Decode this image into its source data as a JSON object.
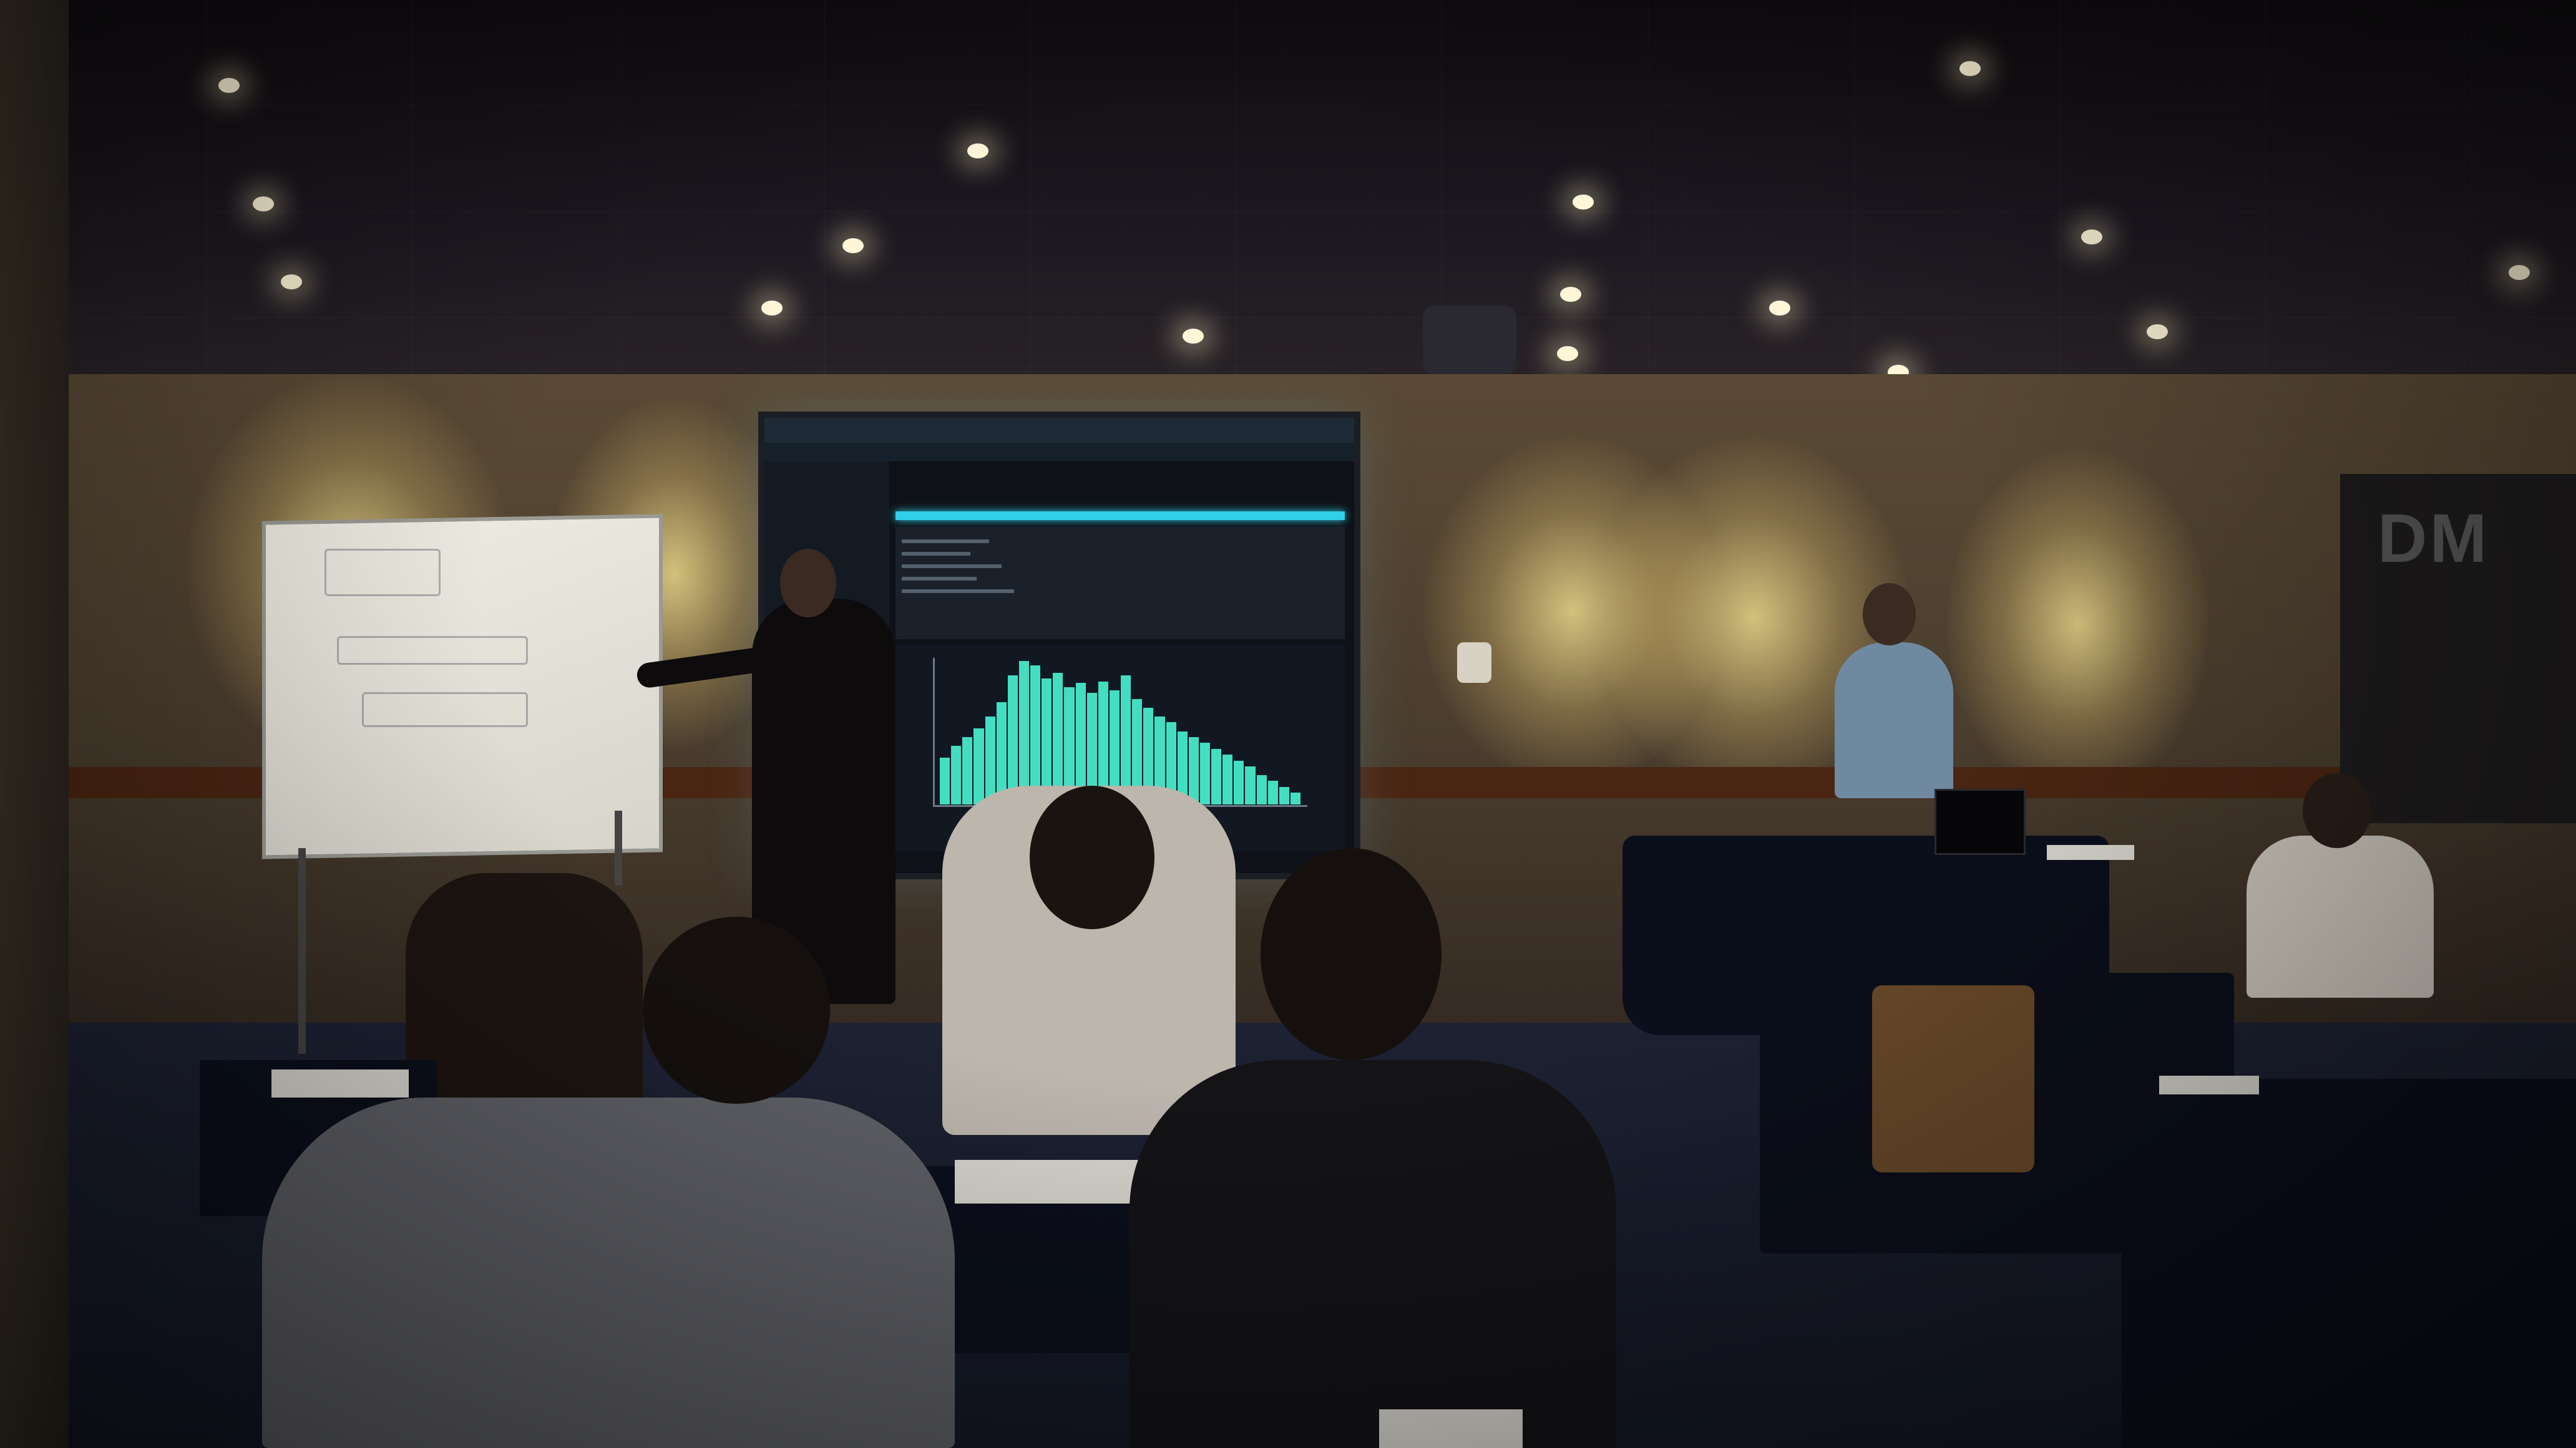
{
  "scene": {
    "subject": "",
    "banner_logo_text": "DM"
  },
  "screen_chart": {
    "type": "histogram",
    "bar_levels": [
      0.32,
      0.4,
      0.46,
      0.52,
      0.6,
      0.7,
      0.88,
      0.98,
      0.95,
      0.86,
      0.9,
      0.8,
      0.83,
      0.76,
      0.84,
      0.78,
      0.88,
      0.72,
      0.66,
      0.6,
      0.56,
      0.5,
      0.46,
      0.42,
      0.38,
      0.34,
      0.3,
      0.26,
      0.2,
      0.16,
      0.12,
      0.08
    ]
  },
  "colors": {
    "screen_accent": "#2fd0e8",
    "histogram": "#48f0d0",
    "wall_light": "#e8d690"
  }
}
